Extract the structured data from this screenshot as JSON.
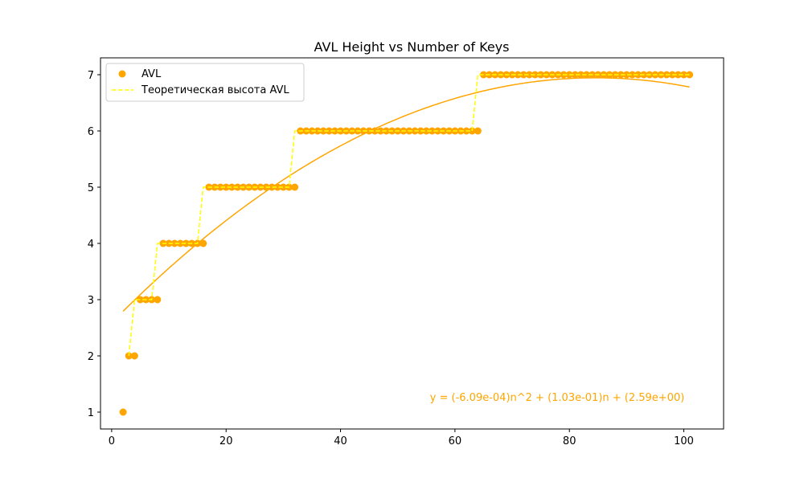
{
  "chart_data": {
    "type": "scatter",
    "title": "AVL Height vs Number of Keys",
    "xlabel": "",
    "ylabel": "",
    "xlim": [
      -1.95,
      106.95
    ],
    "ylim": [
      0.7,
      7.3
    ],
    "xticks": [
      0,
      20,
      40,
      60,
      80,
      100
    ],
    "yticks": [
      1,
      2,
      3,
      4,
      5,
      6,
      7
    ],
    "grid": false,
    "legend_position": "top-left",
    "colors": {
      "points": "#FFA500",
      "theory": "#FFFF00",
      "fit": "#FFA500",
      "annotation": "#FFA500"
    },
    "series": [
      {
        "name": "AVL",
        "kind": "scatter",
        "points": [
          [
            2,
            1
          ],
          [
            3,
            2
          ],
          [
            4,
            2
          ],
          [
            5,
            3
          ],
          [
            6,
            3
          ],
          [
            7,
            3
          ],
          [
            8,
            3
          ],
          [
            9,
            4
          ],
          [
            16,
            4
          ],
          [
            17,
            5
          ],
          [
            32,
            5
          ],
          [
            33,
            6
          ],
          [
            64,
            6
          ],
          [
            65,
            7
          ],
          [
            101,
            7
          ]
        ],
        "step_levels": [
          {
            "from": 2,
            "to": 2,
            "y": 1
          },
          {
            "from": 3,
            "to": 4,
            "y": 2
          },
          {
            "from": 5,
            "to": 8,
            "y": 3
          },
          {
            "from": 9,
            "to": 16,
            "y": 4
          },
          {
            "from": 17,
            "to": 32,
            "y": 5
          },
          {
            "from": 33,
            "to": 64,
            "y": 6
          },
          {
            "from": 65,
            "to": 101,
            "y": 7
          }
        ]
      },
      {
        "name": "Теоретическая высота AVL",
        "kind": "line-dashed",
        "x_start": 3,
        "x_end": 101,
        "levels": [
          {
            "from": 3,
            "to": 3,
            "y": 2
          },
          {
            "from": 4,
            "to": 7,
            "y": 3
          },
          {
            "from": 8,
            "to": 15,
            "y": 4
          },
          {
            "from": 16,
            "to": 31,
            "y": 5
          },
          {
            "from": 32,
            "to": 63,
            "y": 6
          },
          {
            "from": 64,
            "to": 101,
            "y": 7
          }
        ]
      },
      {
        "kind": "fit-curve",
        "coefficients": {
          "a": -0.000609,
          "b": 0.103,
          "c": 2.59
        },
        "x_range": [
          2,
          101
        ]
      }
    ],
    "annotation": "y = (-6.09e-04)n^2 + (1.03e-01)n + (2.59e+00)"
  }
}
